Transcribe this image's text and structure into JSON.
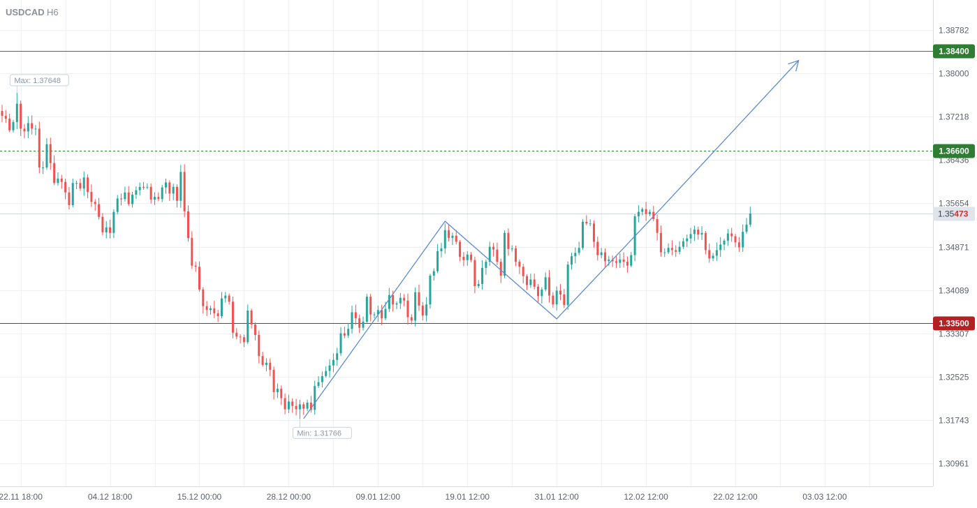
{
  "header": {
    "symbol": "USDCAD",
    "timeframe": "H6"
  },
  "colors": {
    "up": "#26a69a",
    "down": "#ef5350",
    "grid": "#eef0f4",
    "support": "#b22222",
    "resistance": "#2e7d32",
    "target": "#2e7d32",
    "pattern": "#5b8bd4",
    "current": "#d0d4dc"
  },
  "chart_data": {
    "type": "candlestick",
    "symbol": "USDCAD",
    "timeframe": "H6",
    "y_range": [
      1.3055,
      1.3932
    ],
    "y_ticks": [
      1.38782,
      1.38,
      1.37218,
      1.36436,
      1.35654,
      1.34871,
      1.34089,
      1.33307,
      1.32525,
      1.31743,
      1.30961
    ],
    "y_tick_labels": [
      "1.38782",
      "1.38000",
      "1.37218",
      "1.36436",
      "1.35654",
      "1.34871",
      "1.34089",
      "1.33307",
      "1.32525",
      "1.31743",
      "1.30961"
    ],
    "x_tick_labels": [
      "22.11 18:00",
      "04.12 18:00",
      "15.12 00:00",
      "28.12 00:00",
      "09.01 12:00",
      "19.01 12:00",
      "31.01 12:00",
      "12.02 12:00",
      "22.02 12:00",
      "03.03 12:00"
    ],
    "x_ticks_index": [
      5,
      29,
      53,
      77,
      101,
      125,
      149,
      173,
      197,
      221
    ],
    "levels": [
      {
        "label": "1.38400",
        "value": 1.384,
        "style": "solid",
        "role": "resistance"
      },
      {
        "label": "1.36600",
        "value": 1.366,
        "style": "dashed",
        "role": "target"
      },
      {
        "label": "1.33500",
        "value": 1.335,
        "style": "solid",
        "role": "support"
      }
    ],
    "current_price": {
      "value": 1.35473,
      "prefix": "1.35",
      "suffix": "473"
    },
    "max_label": "Max: 1.37648",
    "min_label": "Min: 1.31766",
    "pattern_line": [
      [
        81,
        1.3177
      ],
      [
        119,
        1.3533
      ],
      [
        149,
        1.3357
      ],
      [
        177,
        1.3556
      ],
      [
        214,
        1.3823
      ]
    ],
    "closes": [
      1.3723,
      1.3718,
      1.3697,
      1.3712,
      1.3745,
      1.37,
      1.3695,
      1.371,
      1.37,
      1.37,
      1.363,
      1.363,
      1.3672,
      1.3638,
      1.3602,
      1.361,
      1.3604,
      1.3585,
      1.3562,
      1.3602,
      1.3602,
      1.3592,
      1.3612,
      1.3586,
      1.3568,
      1.3564,
      1.3541,
      1.3513,
      1.3522,
      1.3512,
      1.355,
      1.3574,
      1.3573,
      1.3585,
      1.3564,
      1.3581,
      1.3589,
      1.3595,
      1.3594,
      1.3595,
      1.3572,
      1.3577,
      1.3573,
      1.3594,
      1.3603,
      1.3583,
      1.3595,
      1.357,
      1.3622,
      1.3551,
      1.3503,
      1.3453,
      1.3451,
      1.341,
      1.338,
      1.3373,
      1.3376,
      1.3367,
      1.3362,
      1.3394,
      1.3399,
      1.3388,
      1.3332,
      1.3325,
      1.3324,
      1.3315,
      1.3372,
      1.3347,
      1.3328,
      1.329,
      1.3274,
      1.3278,
      1.3265,
      1.3225,
      1.3231,
      1.3214,
      1.3194,
      1.3208,
      1.32,
      1.3194,
      1.3203,
      1.3195,
      1.3206,
      1.3193,
      1.3236,
      1.3243,
      1.3254,
      1.3263,
      1.3273,
      1.3283,
      1.3295,
      1.3331,
      1.3327,
      1.3339,
      1.3369,
      1.3358,
      1.3341,
      1.3352,
      1.3397,
      1.3365,
      1.3365,
      1.3373,
      1.3358,
      1.3375,
      1.34,
      1.3383,
      1.3385,
      1.3395,
      1.339,
      1.336,
      1.3354,
      1.3405,
      1.3381,
      1.3363,
      1.3383,
      1.3435,
      1.3443,
      1.3479,
      1.3484,
      1.3517,
      1.3503,
      1.3507,
      1.3496,
      1.3469,
      1.3463,
      1.3473,
      1.3463,
      1.3416,
      1.342,
      1.3449,
      1.346,
      1.3487,
      1.3482,
      1.346,
      1.3435,
      1.3512,
      1.3483,
      1.3484,
      1.346,
      1.3451,
      1.3434,
      1.3418,
      1.3428,
      1.3415,
      1.3398,
      1.341,
      1.3432,
      1.3399,
      1.3383,
      1.3408,
      1.3401,
      1.3382,
      1.3455,
      1.347,
      1.3476,
      1.3485,
      1.3532,
      1.3529,
      1.3529,
      1.3496,
      1.3472,
      1.3477,
      1.3461,
      1.3464,
      1.3461,
      1.3458,
      1.3464,
      1.346,
      1.3453,
      1.3472,
      1.3542,
      1.355,
      1.3555,
      1.3546,
      1.355,
      1.3537,
      1.3512,
      1.3477,
      1.3477,
      1.3485,
      1.3481,
      1.3478,
      1.3487,
      1.3497,
      1.3502,
      1.351,
      1.3518,
      1.3509,
      1.3512,
      1.3481,
      1.3466,
      1.3471,
      1.3481,
      1.3491,
      1.3498,
      1.3511,
      1.3506,
      1.3495,
      1.3486,
      1.3514,
      1.3527,
      1.3547
    ]
  }
}
